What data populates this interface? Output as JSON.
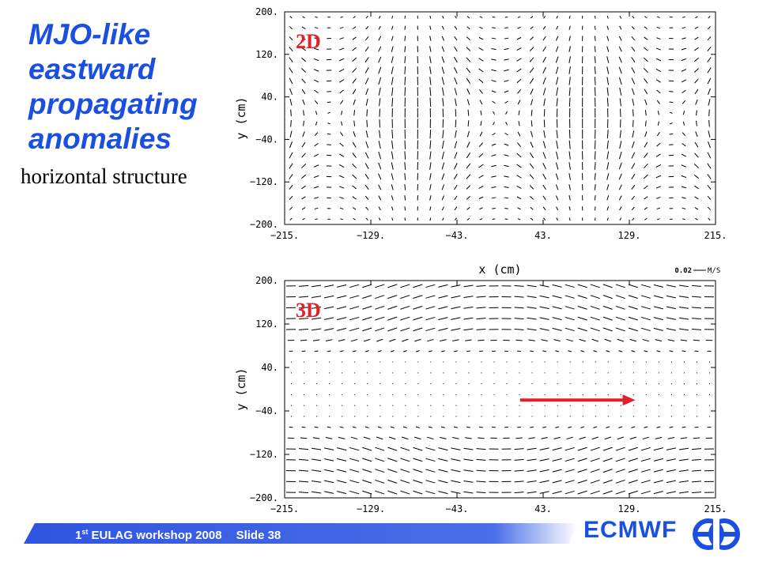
{
  "slide": {
    "title_lines": [
      "MJO-like",
      "eastward",
      "propagating",
      "anomalies"
    ],
    "subtitle": "horizontal structure",
    "footer": {
      "ordinal": "1",
      "ordinal_suffix": "st",
      "event": " EULAG workshop 2008",
      "slide_label": "Slide 38"
    },
    "brand": "ECMWF",
    "colors": {
      "title": "#1a4fe0",
      "panel_label": "#e0202a",
      "arrow": "#e0202a",
      "footer_bar": "#2f55e0"
    }
  },
  "chart_data": [
    {
      "type": "quiver",
      "panel_label": "2D",
      "xlabel": "x (cm)",
      "ylabel": "y (cm)",
      "xlim": [
        -215,
        215
      ],
      "ylim": [
        -200,
        200
      ],
      "xticks": [
        "−215.",
        "−129.",
        "−43.",
        "43.",
        "129.",
        "215."
      ],
      "yticks": [
        "200.",
        "120.",
        "40.",
        "−40.",
        "−120.",
        "−200."
      ],
      "reference_vector": {
        "value": "0.02",
        "unit": "M/S"
      },
      "pattern": "gyres"
    },
    {
      "type": "quiver",
      "panel_label": "3D",
      "xlabel": "",
      "ylabel": "y (cm)",
      "xlim": [
        -215,
        215
      ],
      "ylim": [
        -200,
        200
      ],
      "xticks": [
        "−215.",
        "−129.",
        "−43.",
        "43.",
        "129.",
        "215."
      ],
      "yticks": [
        "200.",
        "120.",
        "40.",
        "−40.",
        "−120.",
        "−200."
      ],
      "pattern": "banded",
      "annotation": {
        "type": "arrow",
        "direction": "east",
        "from": [
          20,
          -20
        ],
        "to": [
          135,
          -20
        ]
      }
    }
  ]
}
